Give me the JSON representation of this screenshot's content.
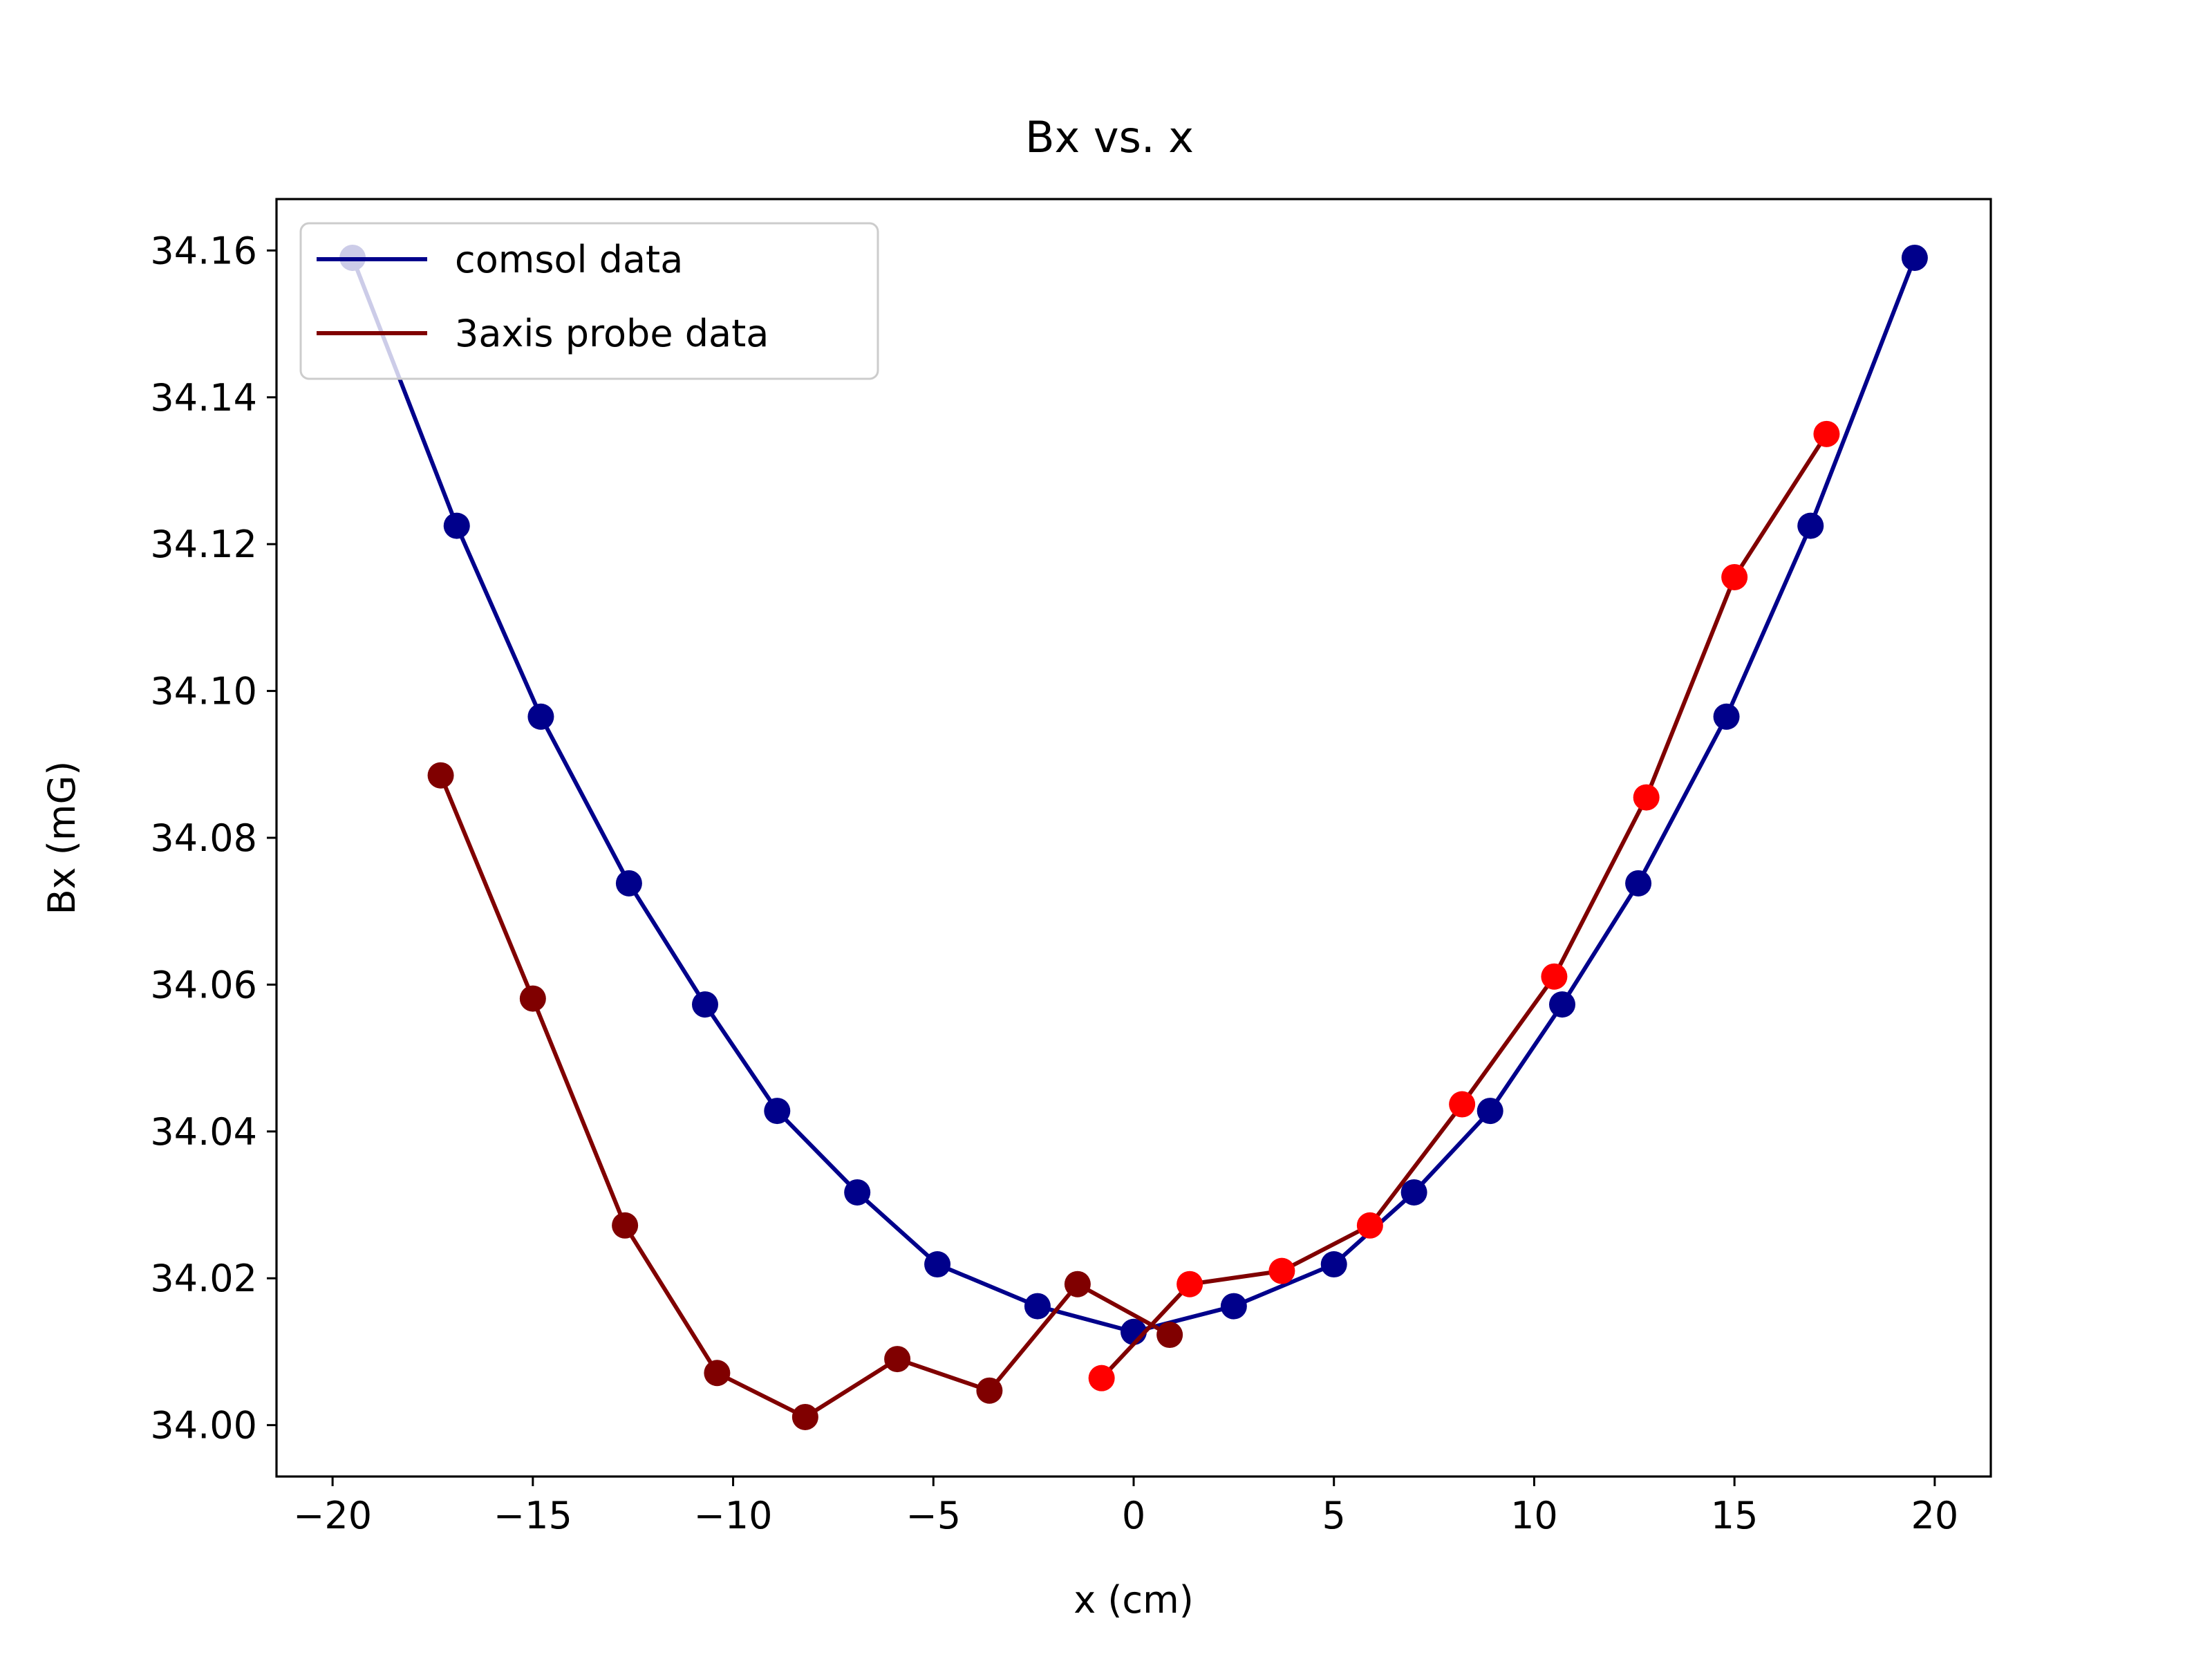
{
  "chart_data": {
    "type": "line",
    "title": "Bx vs. x",
    "xlabel": "x (cm)",
    "ylabel": "Bx (mG)",
    "xlim": [
      -21.4,
      21.4
    ],
    "ylim": [
      33.993,
      34.167
    ],
    "xticks": [
      -20,
      -15,
      -10,
      -5,
      0,
      5,
      10,
      15,
      20
    ],
    "xtick_labels": [
      "−20",
      "−15",
      "−10",
      "−5",
      "0",
      "5",
      "10",
      "15",
      "20"
    ],
    "yticks": [
      34.0,
      34.02,
      34.04,
      34.06,
      34.08,
      34.1,
      34.12,
      34.14,
      34.16
    ],
    "ytick_labels": [
      "34.00",
      "34.02",
      "34.04",
      "34.06",
      "34.08",
      "34.10",
      "34.12",
      "34.14",
      "34.16"
    ],
    "grid": false,
    "legend_position": "top-left",
    "series": [
      {
        "name": "comsol data",
        "color": "#00008b",
        "x": [
          -19.5,
          -16.9,
          -14.8,
          -12.6,
          -10.7,
          -8.9,
          -6.9,
          -4.9,
          -2.4,
          0.0,
          2.5,
          5.0,
          7.0,
          8.9,
          10.7,
          12.6,
          14.8,
          16.9,
          19.5
        ],
        "y": [
          34.159,
          34.1225,
          34.0965,
          34.0738,
          34.0573,
          34.0428,
          34.0317,
          34.0219,
          34.0162,
          34.0127,
          34.0162,
          34.0219,
          34.0317,
          34.0428,
          34.0573,
          34.0738,
          34.0965,
          34.1225,
          34.159
        ]
      },
      {
        "name": "3axis probe data",
        "color": "#800000",
        "x": [
          -17.3,
          -15.0,
          -12.7,
          -10.4,
          -8.2,
          -5.9,
          -3.6,
          -1.4,
          0.9
        ],
        "y": [
          34.0885,
          34.0581,
          34.0272,
          34.0071,
          34.0011,
          34.009,
          34.0047,
          34.0192,
          34.0123
        ]
      },
      {
        "color": "#ff0000",
        "legend": false,
        "line_color": "#800000",
        "x": [
          -0.8,
          1.4,
          3.7,
          5.9,
          8.2,
          10.5,
          12.8,
          15.0,
          17.3
        ],
        "y": [
          34.0064,
          34.0192,
          34.021,
          34.0272,
          34.0437,
          34.0611,
          34.0855,
          34.1155,
          34.135
        ]
      }
    ]
  }
}
